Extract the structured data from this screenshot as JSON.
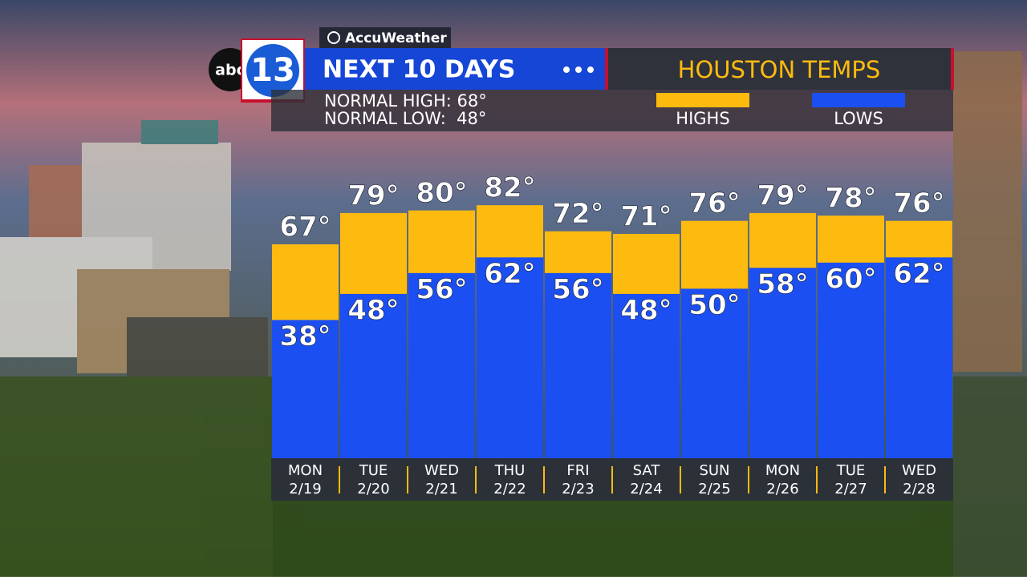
{
  "brand": {
    "network": "abc",
    "station": "13",
    "source": "AccuWeather"
  },
  "chart_data": {
    "type": "range-bar",
    "title": "NEXT 10 DAYS",
    "subtitle": "HOUSTON TEMPS",
    "annotations": [
      "NORMAL HIGH: 68°",
      "NORMAL LOW:  48°"
    ],
    "weekdays": [
      "MON",
      "TUE",
      "WED",
      "THU",
      "FRI",
      "SAT",
      "SUN",
      "MON",
      "TUE",
      "WED"
    ],
    "categories": [
      "2/19",
      "2/20",
      "2/21",
      "2/22",
      "2/23",
      "2/24",
      "2/25",
      "2/26",
      "2/27",
      "2/28"
    ],
    "series": [
      {
        "name": "HIGHS",
        "color": "#fdbb0f",
        "values": [
          67,
          79,
          80,
          82,
          72,
          71,
          76,
          79,
          78,
          76
        ],
        "value_labels": [
          "67°",
          "79°",
          "80°",
          "82°",
          "72°",
          "71°",
          "76°",
          "79°",
          "78°",
          "76°"
        ]
      },
      {
        "name": "LOWS",
        "color": "#1b4ff2",
        "values": [
          38,
          48,
          56,
          62,
          56,
          48,
          50,
          58,
          60,
          62
        ],
        "value_labels": [
          "38°",
          "48°",
          "56°",
          "62°",
          "56°",
          "48°",
          "50°",
          "58°",
          "60°",
          "62°"
        ]
      }
    ],
    "ylim": [
      -15,
      110
    ]
  }
}
